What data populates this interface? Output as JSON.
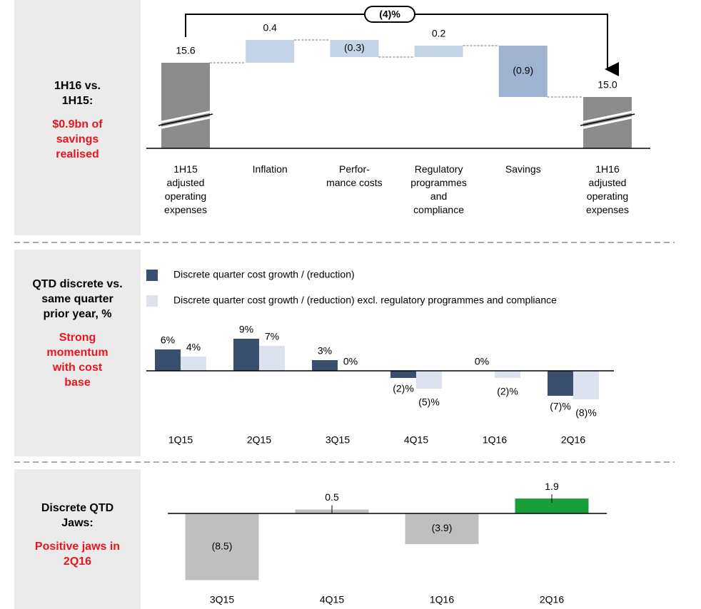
{
  "panels": [
    {
      "heading": "1H16 vs. 1H15:",
      "highlight": "$0.9bn of savings realised"
    },
    {
      "heading": "QTD discrete vs. same quarter prior year, %",
      "highlight": "Strong momentum with cost base"
    },
    {
      "heading": "Discrete QTD Jaws:",
      "highlight": "Positive jaws in 2Q16"
    }
  ],
  "chart_data": [
    {
      "type": "waterfall",
      "categories": [
        "1H15\nadjusted\noperating\nexpenses",
        "Inflation",
        "Perfor-\nmance costs",
        "Regulatory\nprogrammes\nand\ncompliance",
        "Savings",
        "1H16\nadjusted\noperating\nexpenses"
      ],
      "values": [
        15.6,
        0.4,
        -0.3,
        0.2,
        -0.9,
        15.0
      ],
      "value_labels": [
        "15.6",
        "0.4",
        "(0.3)",
        "0.2",
        "(0.9)",
        "15.0"
      ],
      "colors": [
        "#8c8c8c",
        "#c5d3e6",
        "#c5d3e6",
        "#c5d3e6",
        "#9fb3d1",
        "#8c8c8c"
      ],
      "ylim": [
        14.1,
        16.4
      ],
      "annotation": "(4)%"
    },
    {
      "type": "grouped_bar",
      "categories": [
        "1Q15",
        "2Q15",
        "3Q15",
        "4Q15",
        "1Q16",
        "2Q16"
      ],
      "series": [
        {
          "name": "Discrete quarter cost growth / (reduction)",
          "color": "#3a4e6e",
          "values": [
            6,
            9,
            3,
            -2,
            0,
            -7
          ],
          "value_labels": [
            "6%",
            "9%",
            "3%",
            "(2)%",
            "0%",
            "(7)%"
          ]
        },
        {
          "name": "Discrete quarter cost growth / (reduction) excl. regulatory programmes and compliance",
          "color": "#dce3ee",
          "values": [
            4,
            7,
            0,
            -5,
            -2,
            -8
          ],
          "value_labels": [
            "4%",
            "7%",
            "0%",
            "(5)%",
            "(2)%",
            "(8)%"
          ]
        }
      ],
      "ylim": [
        -9,
        10
      ]
    },
    {
      "type": "bar",
      "categories": [
        "3Q15",
        "4Q15",
        "1Q16",
        "2Q16"
      ],
      "values": [
        -8.5,
        0.5,
        -3.9,
        1.9
      ],
      "value_labels": [
        "(8.5)",
        "0.5",
        "(3.9)",
        "1.9"
      ],
      "colors": [
        "#bfbfbf",
        "#bfbfbf",
        "#bfbfbf",
        "#1a9e3a"
      ],
      "ylim": [
        -9,
        2.5
      ]
    }
  ]
}
